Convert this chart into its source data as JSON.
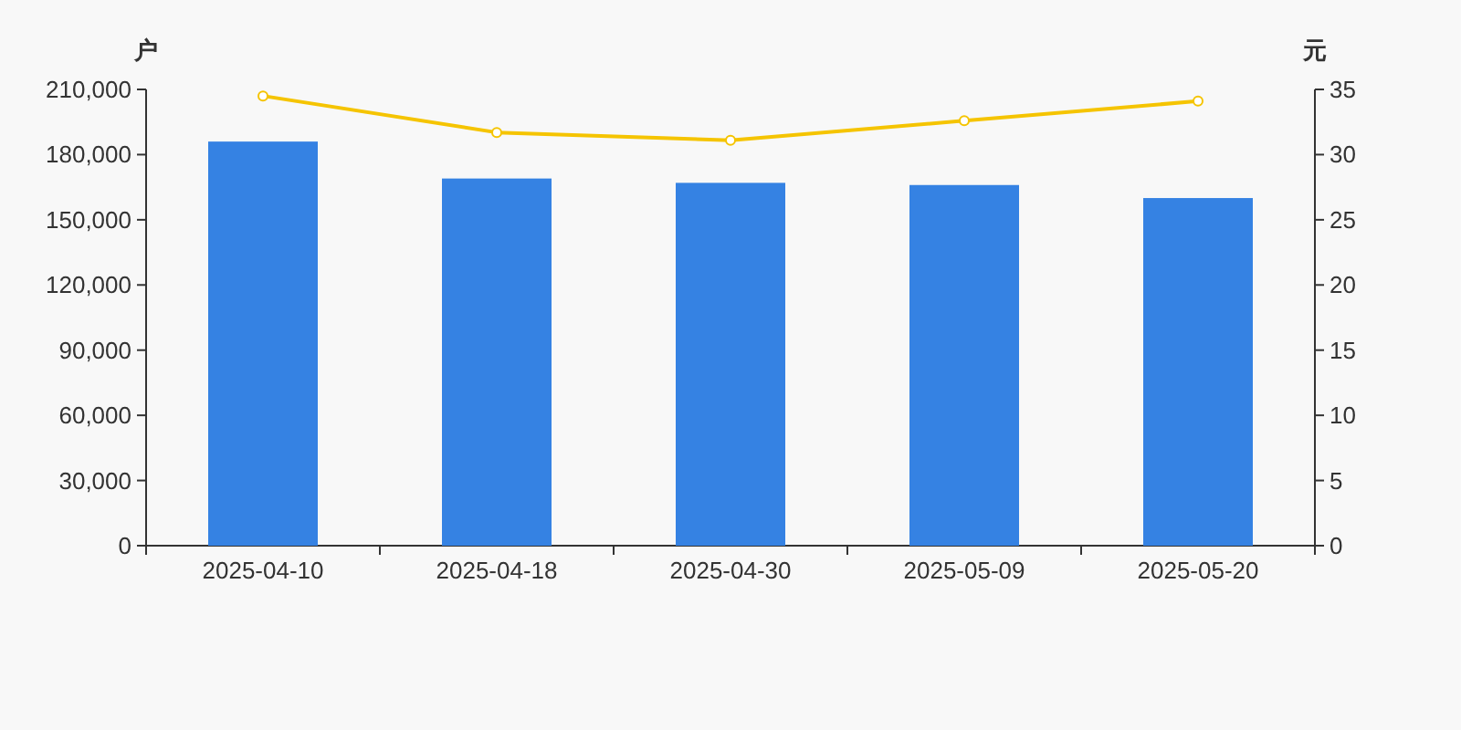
{
  "chart_data": {
    "type": "bar",
    "ylabel": "户",
    "y2label": "元",
    "categories": [
      "2025-04-10",
      "2025-04-18",
      "2025-04-30",
      "2025-05-09",
      "2025-05-20"
    ],
    "series": [
      {
        "color": "#3582e3",
        "values": [
          186000,
          169000,
          167000,
          166000,
          160000
        ]
      },
      {
        "type": "line",
        "axis": "y2",
        "color": "#f5c400",
        "marker": "circle",
        "values": [
          34.5,
          31.7,
          31.1,
          32.6,
          34.1
        ]
      }
    ],
    "ylim": [
      0,
      210000
    ],
    "yticks": [
      {
        "value": 0,
        "label": "0"
      },
      {
        "value": 30000,
        "label": "30,000"
      },
      {
        "value": 60000,
        "label": "60,000"
      },
      {
        "value": 90000,
        "label": "90,000"
      },
      {
        "value": 120000,
        "label": "120,000"
      },
      {
        "value": 150000,
        "label": "150,000"
      },
      {
        "value": 180000,
        "label": "180,000"
      },
      {
        "value": 210000,
        "label": "210,000"
      }
    ],
    "y2lim": [
      0,
      35
    ],
    "y2ticks": [
      0,
      5,
      10,
      15,
      20,
      25,
      30,
      35
    ],
    "grid": false
  }
}
